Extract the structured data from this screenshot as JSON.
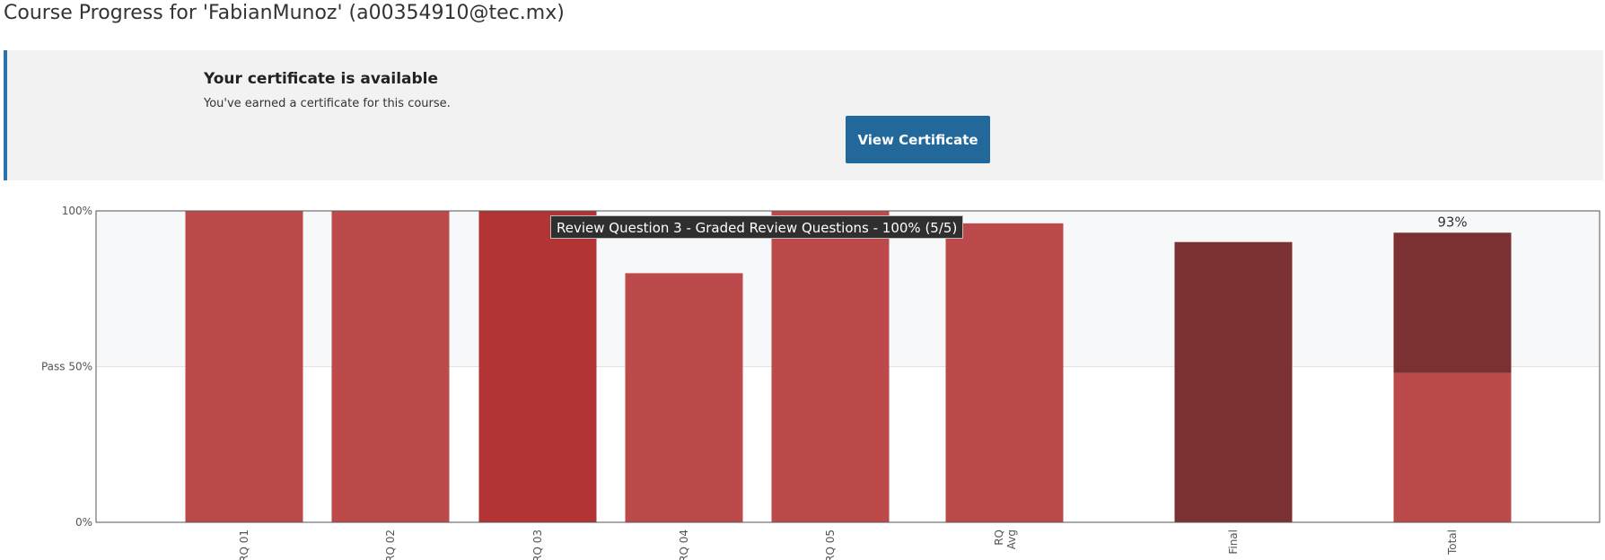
{
  "page": {
    "title": "Course Progress for 'FabianMunoz' (a00354910@tec.mx)"
  },
  "certificate": {
    "title": "Your certificate is available",
    "description": "You've earned a certificate for this course.",
    "button_label": "View Certificate"
  },
  "tooltip": {
    "text": "Review Question 3 - Graded Review Questions - 100% (5/5)"
  },
  "colors": {
    "bar": "#bd4a4a",
    "bar_hover": "#b33434",
    "bar_dark": "#7b3032",
    "pass_band": "#f7f8fa",
    "banner_accent": "#2a74b0",
    "button": "#23689b"
  },
  "chart_data": {
    "type": "bar",
    "categories": [
      "RQ 01",
      "RQ 02",
      "RQ 03",
      "RQ 04",
      "RQ 05",
      "RQ Avg",
      "Final",
      "Total"
    ],
    "values": [
      100,
      100,
      100,
      80,
      100,
      96,
      90,
      93
    ],
    "total_breakdown": {
      "rq_contribution": 48,
      "final_contribution": 45
    },
    "ylim": [
      0,
      100
    ],
    "y_ticks": [
      {
        "value": 0,
        "label": "0%"
      },
      {
        "value": 50,
        "label": "Pass 50%"
      },
      {
        "value": 100,
        "label": "100%"
      }
    ],
    "data_labels": [
      {
        "category": "Total",
        "text": "93%"
      }
    ],
    "highlighted_category": "RQ 03",
    "grid": false
  }
}
